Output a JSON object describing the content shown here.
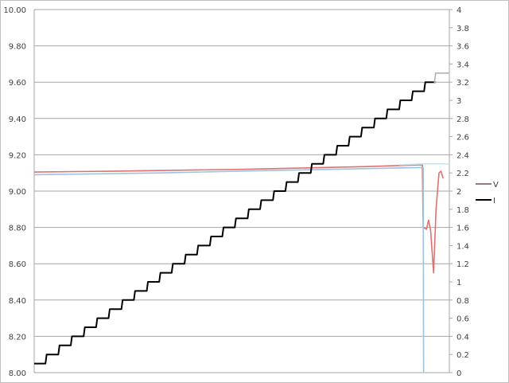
{
  "chart_data": {
    "type": "line",
    "title": "",
    "xlabel": "",
    "ylabel": "",
    "y_left": {
      "range": [
        8.0,
        10.0
      ],
      "ticks": [
        "8.00",
        "8.20",
        "8.40",
        "8.60",
        "8.80",
        "9.00",
        "9.20",
        "9.40",
        "9.60",
        "9.80",
        "10.00"
      ]
    },
    "y_right": {
      "range": [
        0,
        4
      ],
      "ticks": [
        "0",
        "0.2",
        "0.4",
        "0.6",
        "0.8",
        "1",
        "1.2",
        "1.4",
        "1.6",
        "1.8",
        "2",
        "2.2",
        "2.4",
        "2.6",
        "2.8",
        "3",
        "3.2",
        "3.4",
        "3.6",
        "3.8",
        "4"
      ]
    },
    "x_range": [
      0,
      100
    ],
    "grid": "horizontal",
    "legend_placement": "right",
    "series": [
      {
        "name": "V",
        "axis": "left",
        "color": "#e07070",
        "points": [
          [
            0,
            9.105
          ],
          [
            20,
            9.11
          ],
          [
            50,
            9.12
          ],
          [
            80,
            9.135
          ],
          [
            93.5,
            9.145
          ],
          [
            93.7,
            8.8
          ],
          [
            94.5,
            8.79
          ],
          [
            95,
            8.84
          ],
          [
            95.5,
            8.78
          ],
          [
            96.2,
            8.55
          ],
          [
            96.8,
            8.9
          ],
          [
            97.5,
            9.1
          ],
          [
            98,
            9.11
          ],
          [
            98.5,
            9.07
          ]
        ]
      },
      {
        "axis": "left",
        "color": "#9cc3e0",
        "points": [
          [
            0,
            9.09
          ],
          [
            30,
            9.1
          ],
          [
            60,
            9.115
          ],
          [
            93.7,
            9.13
          ],
          [
            93.8,
            8.0
          ]
        ]
      },
      {
        "axis": "left",
        "color": "#c8e6ec",
        "points": [
          [
            88,
            9.145
          ],
          [
            93.8,
            9.15
          ],
          [
            100,
            9.15
          ]
        ]
      },
      {
        "name": "I",
        "axis": "right",
        "color": "#000000",
        "step": true,
        "points": [
          [
            0,
            0.1
          ],
          [
            3.0,
            0.2
          ],
          [
            6.1,
            0.3
          ],
          [
            9.1,
            0.4
          ],
          [
            12.2,
            0.5
          ],
          [
            15.2,
            0.6
          ],
          [
            18.2,
            0.7
          ],
          [
            21.3,
            0.8
          ],
          [
            24.3,
            0.9
          ],
          [
            27.4,
            1.0
          ],
          [
            30.4,
            1.1
          ],
          [
            33.4,
            1.2
          ],
          [
            36.5,
            1.3
          ],
          [
            39.5,
            1.4
          ],
          [
            42.6,
            1.5
          ],
          [
            45.6,
            1.6
          ],
          [
            48.6,
            1.7
          ],
          [
            51.7,
            1.8
          ],
          [
            54.7,
            1.9
          ],
          [
            57.8,
            2.0
          ],
          [
            60.8,
            2.1
          ],
          [
            63.8,
            2.2
          ],
          [
            66.9,
            2.3
          ],
          [
            69.9,
            2.4
          ],
          [
            73.0,
            2.5
          ],
          [
            76.0,
            2.6
          ],
          [
            79.0,
            2.7
          ],
          [
            82.1,
            2.8
          ],
          [
            85.1,
            2.9
          ],
          [
            88.2,
            3.0
          ],
          [
            91.2,
            3.1
          ],
          [
            94.2,
            3.2
          ],
          [
            96.7,
            3.2
          ]
        ]
      },
      {
        "axis": "right",
        "color": "#b0b0b0",
        "step": true,
        "points": [
          [
            96.7,
            3.2
          ],
          [
            96.7,
            3.3
          ],
          [
            100,
            3.3
          ]
        ]
      }
    ],
    "legend": [
      {
        "label": "V",
        "color": "#7a4a4a"
      },
      {
        "label": "I",
        "color": "#000000"
      }
    ]
  }
}
